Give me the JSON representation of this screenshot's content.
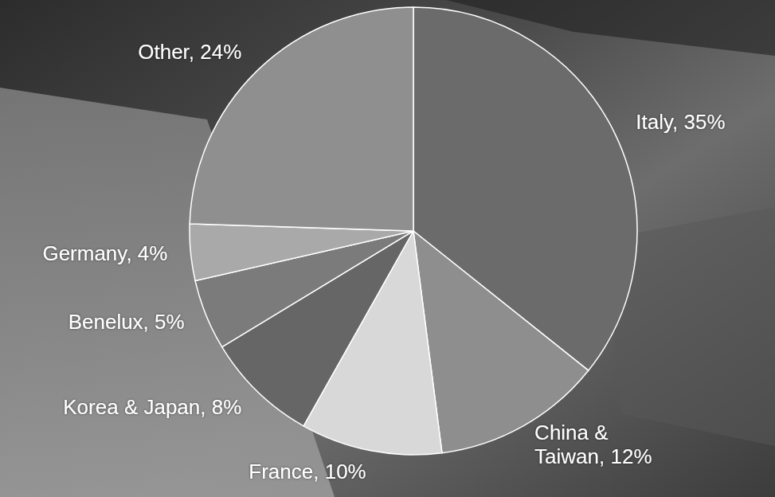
{
  "chart_data": {
    "type": "pie",
    "categories": [
      "Italy",
      "China & Taiwan",
      "France",
      "Korea & Japan",
      "Benelux",
      "Germany",
      "Other"
    ],
    "values": [
      35,
      12,
      10,
      8,
      5,
      4,
      24
    ],
    "value_labels": [
      "Italy, 35%",
      "China & Taiwan, 12%",
      "France, 10%",
      "Korea & Japan, 8%",
      "Benelux, 5%",
      "Germany, 4%",
      "Other, 24%"
    ],
    "colors": [
      "#6b6b6b",
      "#8e8e8e",
      "#d8d8d8",
      "#666666",
      "#7b7b7b",
      "#a9a9a9",
      "#8f8f8f"
    ],
    "data_labels": true
  }
}
